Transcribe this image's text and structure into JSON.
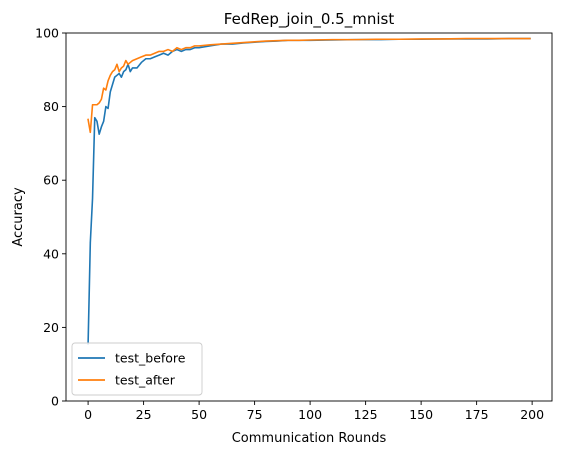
{
  "chart_data": {
    "type": "line",
    "title": "FedRep_join_0.5_mnist",
    "xlabel": "Communication Rounds",
    "ylabel": "Accuracy",
    "xlim": [
      -9.95,
      208.95
    ],
    "ylim": [
      0,
      100
    ],
    "xticks": [
      0,
      25,
      50,
      75,
      100,
      125,
      150,
      175,
      200
    ],
    "yticks": [
      0,
      20,
      40,
      60,
      80,
      100
    ],
    "grid": false,
    "legend_position": "lower-left",
    "series": [
      {
        "name": "test_before",
        "color": "#1f77b4",
        "x": [
          0,
          1,
          2,
          3,
          4,
          5,
          6,
          7,
          8,
          9,
          10,
          11,
          12,
          13,
          14,
          15,
          16,
          17,
          18,
          19,
          20,
          22,
          24,
          26,
          28,
          30,
          32,
          34,
          36,
          38,
          40,
          42,
          44,
          46,
          48,
          50,
          55,
          60,
          65,
          70,
          75,
          80,
          85,
          90,
          95,
          100,
          110,
          120,
          130,
          140,
          150,
          160,
          170,
          180,
          190,
          199
        ],
        "y": [
          15.5,
          43,
          55,
          77,
          76,
          72.5,
          74.5,
          76,
          80,
          79.5,
          84,
          86,
          88,
          88.5,
          89,
          88,
          89.5,
          90,
          91.5,
          89.5,
          90.5,
          90.5,
          92,
          93,
          93,
          93.5,
          94,
          94.5,
          94,
          95,
          95.5,
          95,
          95.5,
          95.5,
          96,
          96,
          96.5,
          97,
          97,
          97.3,
          97.5,
          97.7,
          97.8,
          98,
          98,
          98,
          98.1,
          98.2,
          98.2,
          98.3,
          98.3,
          98.4,
          98.4,
          98.4,
          98.5,
          98.5
        ]
      },
      {
        "name": "test_after",
        "color": "#ff7f0e",
        "x": [
          0,
          1,
          2,
          3,
          4,
          5,
          6,
          7,
          8,
          9,
          10,
          11,
          12,
          13,
          14,
          15,
          16,
          17,
          18,
          19,
          20,
          22,
          24,
          26,
          28,
          30,
          32,
          34,
          36,
          38,
          40,
          42,
          44,
          46,
          48,
          50,
          55,
          60,
          65,
          70,
          75,
          80,
          85,
          90,
          95,
          100,
          110,
          120,
          130,
          140,
          150,
          160,
          170,
          180,
          190,
          199
        ],
        "y": [
          76.5,
          73,
          80.5,
          80.5,
          80.5,
          81,
          82,
          85,
          84.5,
          87,
          88.5,
          89.5,
          90,
          91.5,
          89.5,
          90.5,
          91,
          92.5,
          91.5,
          92,
          92.5,
          93,
          93.5,
          94,
          94,
          94.5,
          95,
          95,
          95.5,
          95,
          96,
          95.5,
          96,
          96,
          96.5,
          96.5,
          96.8,
          97,
          97.2,
          97.4,
          97.6,
          97.8,
          97.9,
          98,
          98,
          98.1,
          98.2,
          98.2,
          98.3,
          98.3,
          98.4,
          98.4,
          98.5,
          98.5,
          98.5,
          98.5
        ]
      }
    ]
  }
}
